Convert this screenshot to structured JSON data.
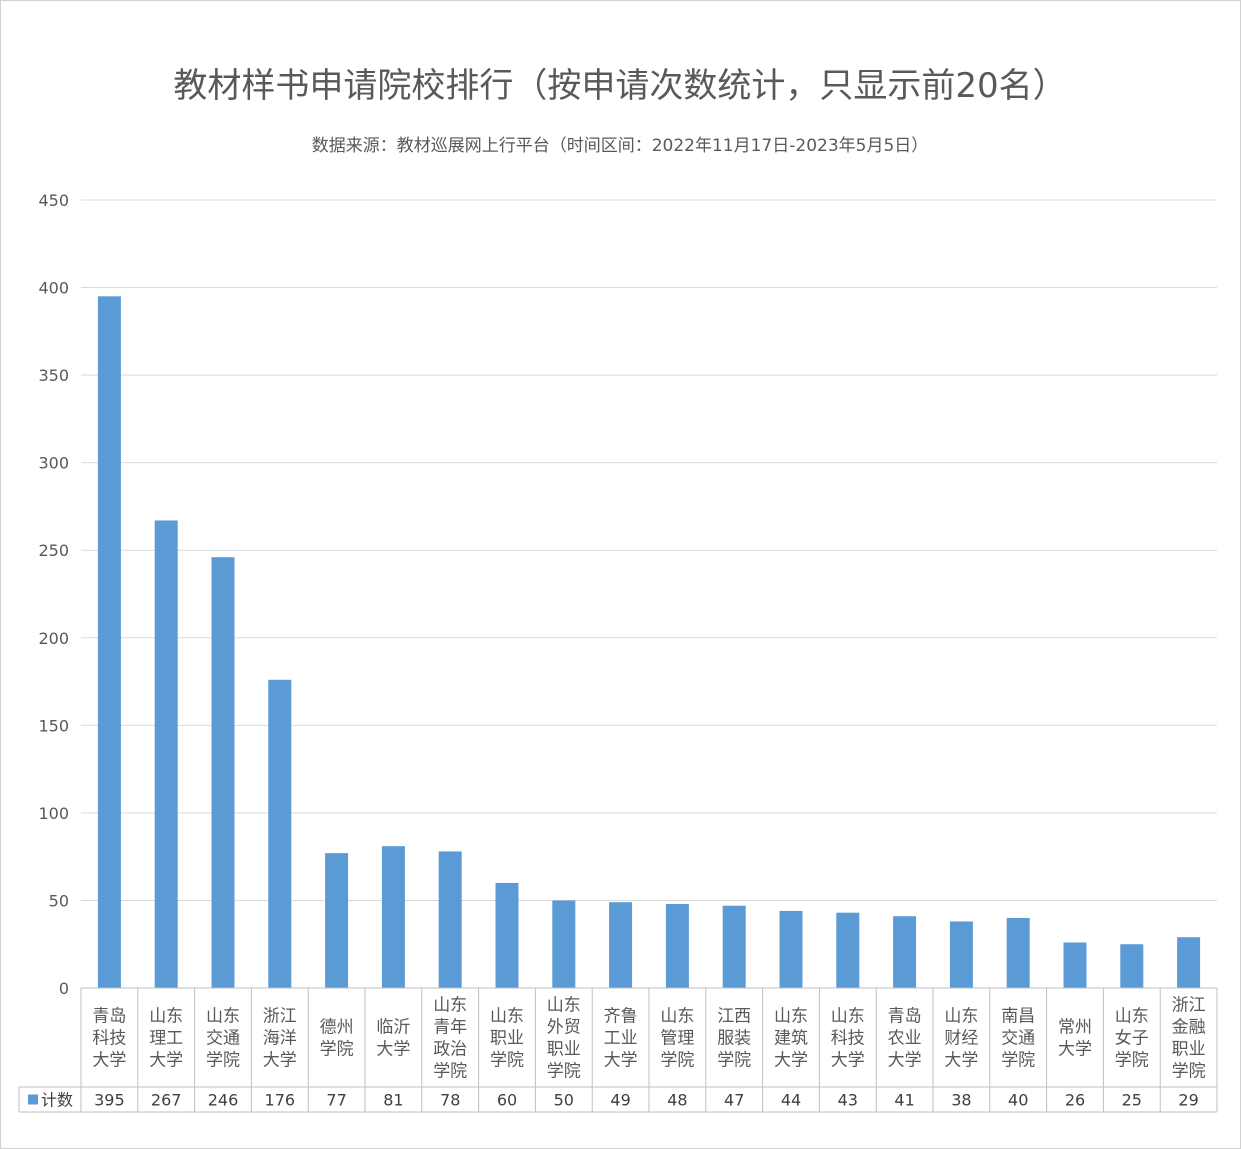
{
  "chart_data": {
    "type": "bar",
    "title": "教材样书申请院校排行（按申请次数统计，只显示前20名）",
    "subtitle": "数据来源：教材巡展网上行平台（时间区间：2022年11月17日-2023年5月5日）",
    "categories": [
      [
        "青岛",
        "科技",
        "大学"
      ],
      [
        "山东",
        "理工",
        "大学"
      ],
      [
        "山东",
        "交通",
        "学院"
      ],
      [
        "浙江",
        "海洋",
        "大学"
      ],
      [
        "德州",
        "学院"
      ],
      [
        "临沂",
        "大学"
      ],
      [
        "山东",
        "青年",
        "政治",
        "学院"
      ],
      [
        "山东",
        "职业",
        "学院"
      ],
      [
        "山东",
        "外贸",
        "职业",
        "学院"
      ],
      [
        "齐鲁",
        "工业",
        "大学"
      ],
      [
        "山东",
        "管理",
        "学院"
      ],
      [
        "江西",
        "服装",
        "学院"
      ],
      [
        "山东",
        "建筑",
        "大学"
      ],
      [
        "山东",
        "科技",
        "大学"
      ],
      [
        "青岛",
        "农业",
        "大学"
      ],
      [
        "山东",
        "财经",
        "大学"
      ],
      [
        "南昌",
        "交通",
        "学院"
      ],
      [
        "常州",
        "大学"
      ],
      [
        "山东",
        "女子",
        "学院"
      ],
      [
        "浙江",
        "金融",
        "职业",
        "学院"
      ]
    ],
    "series": [
      {
        "name": "计数",
        "color": "#5b9bd5",
        "values": [
          395,
          267,
          246,
          176,
          77,
          81,
          78,
          60,
          50,
          49,
          48,
          47,
          44,
          43,
          41,
          38,
          40,
          26,
          25,
          29
        ]
      }
    ],
    "yticks": [
      0,
      50,
      100,
      150,
      200,
      250,
      300,
      350,
      400,
      450
    ],
    "ylim": [
      0,
      450
    ],
    "grid": true,
    "legend": "data-table"
  }
}
